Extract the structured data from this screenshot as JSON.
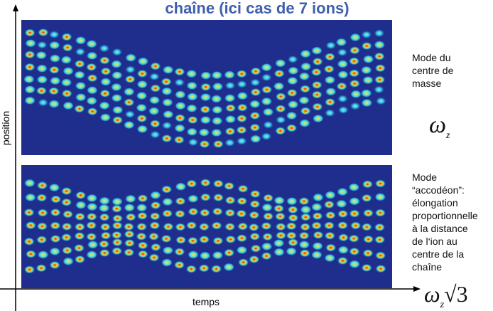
{
  "title": "chaîne (ici cas de 7 ions)",
  "axes": {
    "y_label": "position",
    "x_label": "temps"
  },
  "panels": [
    {
      "caption": [
        "Mode du",
        "centre de",
        "masse"
      ],
      "frequency": {
        "symbol": "ω",
        "subscript": "z"
      }
    },
    {
      "caption": [
        "Mode",
        "“accodéon”:",
        "élongation",
        "proportionnelle",
        "à la distance",
        "de l‘ion au",
        "centre de la",
        "chaîne"
      ],
      "frequency": {
        "symbol": "ω",
        "subscript": "z",
        "factor": "√3"
      }
    }
  ]
}
